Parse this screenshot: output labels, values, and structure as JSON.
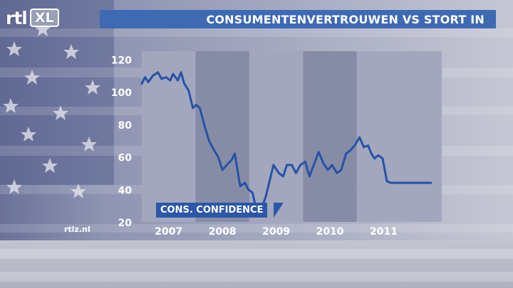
{
  "header": {
    "logo_main": "rtl",
    "logo_badge": "XL",
    "title": "CONSUMENTENVERTROUWEN VS STORT IN"
  },
  "source": "rtlz.nl",
  "series_label": "CONS. CONFIDENCE",
  "colors": {
    "line": "#2552a8",
    "title_bar": "#3e6ab4",
    "band_light": "#a3a7bd",
    "band_dark": "#878ca6"
  },
  "chart_data": {
    "type": "line",
    "title": "CONSUMENTENVERTROUWEN VS STORT IN",
    "ylim": [
      20,
      125
    ],
    "yticks": [
      20,
      40,
      60,
      80,
      100,
      120
    ],
    "xlim": [
      2006.0,
      2011.58
    ],
    "xticks": [
      {
        "label": "2007",
        "value": 2006.5
      },
      {
        "label": "2008",
        "value": 2007.5
      },
      {
        "label": "2009",
        "value": 2008.5
      },
      {
        "label": "2010",
        "value": 2009.5
      },
      {
        "label": "2011",
        "value": 2010.5
      }
    ],
    "bands": [
      {
        "from": 2006.0,
        "to": 2007.0,
        "shade": "light"
      },
      {
        "from": 2007.0,
        "to": 2008.0,
        "shade": "dark"
      },
      {
        "from": 2008.0,
        "to": 2009.0,
        "shade": "light"
      },
      {
        "from": 2009.0,
        "to": 2010.0,
        "shade": "dark"
      },
      {
        "from": 2010.0,
        "to": 2011.58,
        "shade": "light"
      }
    ],
    "series": [
      {
        "name": "CONS. CONFIDENCE",
        "x": [
          2006.0,
          2006.06,
          2006.12,
          2006.21,
          2006.3,
          2006.37,
          2006.45,
          2006.53,
          2006.58,
          2006.67,
          2006.73,
          2006.79,
          2006.87,
          2006.95,
          2007.01,
          2007.08,
          2007.16,
          2007.25,
          2007.33,
          2007.42,
          2007.5,
          2007.58,
          2007.67,
          2007.73,
          2007.83,
          2007.92,
          2007.98,
          2008.06,
          2008.14,
          2008.23,
          2008.31,
          2008.37,
          2008.45,
          2008.55,
          2008.63,
          2008.7,
          2008.79,
          2008.87,
          2008.95,
          2009.04,
          2009.12,
          2009.21,
          2009.29,
          2009.38,
          2009.46,
          2009.54,
          2009.63,
          2009.71,
          2009.8,
          2009.88,
          2009.96,
          2010.05,
          2010.13,
          2010.21,
          2010.27,
          2010.33,
          2010.4,
          2010.48,
          2010.56,
          2010.63,
          2010.71,
          2010.79,
          2010.87,
          2010.96,
          2011.04,
          2011.12,
          2011.21,
          2011.28,
          2011.33,
          2011.38
        ],
        "y": [
          105,
          109,
          106,
          110,
          112,
          108,
          109,
          107,
          111,
          107,
          112,
          105,
          101,
          90,
          92,
          90,
          80,
          70,
          65,
          60,
          52,
          55,
          58,
          62,
          42,
          44,
          40,
          38,
          26,
          28,
          36,
          44,
          55,
          50,
          48,
          55,
          55,
          50,
          55,
          57,
          48,
          56,
          63,
          56,
          52,
          55,
          50,
          52,
          62,
          64,
          67,
          72,
          66,
          67,
          62,
          59,
          61,
          59,
          45,
          44,
          44,
          44,
          44,
          44,
          44,
          44,
          44,
          44,
          44,
          44
        ]
      }
    ]
  }
}
